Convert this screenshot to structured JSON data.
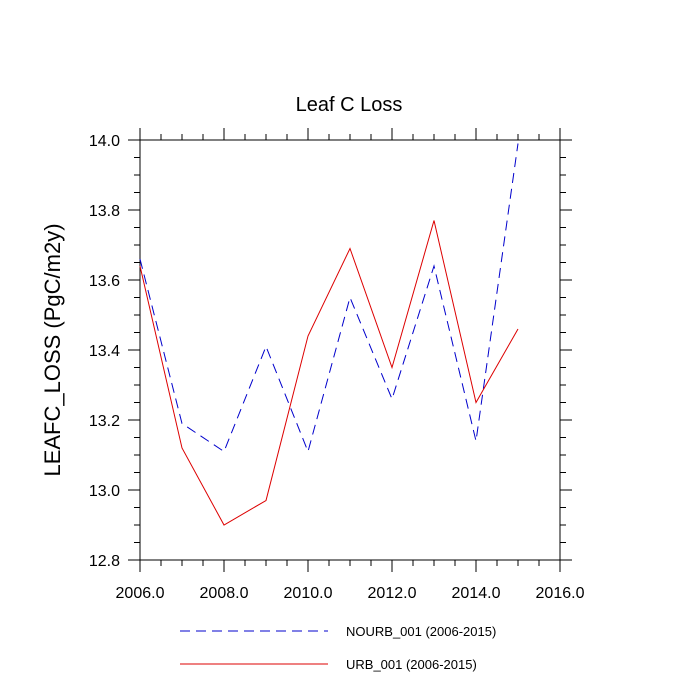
{
  "chart_data": {
    "type": "line",
    "title": "Leaf C Loss",
    "xlabel": "",
    "ylabel": "LEAFC_LOSS  (PgC/m2y)",
    "xlim": [
      2006,
      2016
    ],
    "ylim": [
      12.8,
      14.0
    ],
    "x_ticks": [
      2006,
      2008,
      2010,
      2012,
      2014,
      2016
    ],
    "x_tick_labels": [
      "2006.0",
      "2008.0",
      "2010.0",
      "2012.0",
      "2014.0",
      "2016.0"
    ],
    "y_ticks": [
      12.8,
      13.0,
      13.2,
      13.4,
      13.6,
      13.8,
      14.0
    ],
    "y_tick_labels": [
      "12.8",
      "13.0",
      "13.2",
      "13.4",
      "13.6",
      "13.8",
      "14.0"
    ],
    "grid": false,
    "legend_position": "bottom",
    "x": [
      2006,
      2007,
      2008,
      2009,
      2010,
      2011,
      2012,
      2013,
      2014,
      2015
    ],
    "series": [
      {
        "name": "NOURB_001 (2006-2015)",
        "color": "#0000cc",
        "style": "dashed",
        "values": [
          13.66,
          13.19,
          13.11,
          13.41,
          13.11,
          13.55,
          13.26,
          13.64,
          13.14,
          13.99
        ]
      },
      {
        "name": "URB_001 (2006-2015)",
        "color": "#dd0000",
        "style": "solid",
        "values": [
          13.64,
          13.12,
          12.9,
          12.97,
          13.44,
          13.69,
          13.35,
          13.77,
          13.25,
          13.46
        ]
      }
    ]
  }
}
